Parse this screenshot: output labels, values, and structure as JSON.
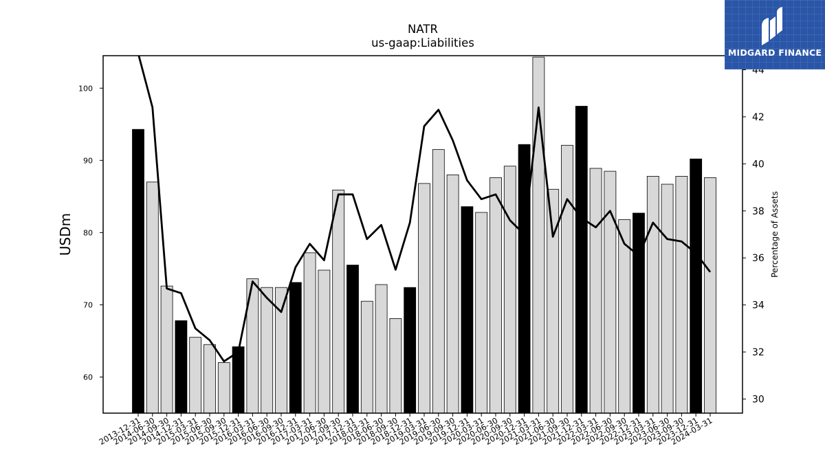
{
  "brand": {
    "name": "MIDGARD FINANCE",
    "mark": "midgard-logo-icon",
    "bg_color": "#2a56a8"
  },
  "chart_data": {
    "type": "bar",
    "title": "NATR",
    "subtitle": "us-gaap:Liabilities",
    "ylabel": "USDm",
    "y2label": "Percentage of Assets",
    "ylim": [
      55.0,
      104.5
    ],
    "y2lim": [
      29.4,
      44.6
    ],
    "yticks": [
      60,
      70,
      80,
      90,
      100
    ],
    "y2ticks": [
      30,
      32,
      34,
      36,
      38,
      40,
      42,
      44
    ],
    "grid": false,
    "legend": "none",
    "colors": {
      "annual": "#000000",
      "quarterly": "#d8d8d8",
      "line": "#000000"
    },
    "categories": [
      "2013-12-31",
      "2014-06-30",
      "2014-09-30",
      "2014-12-31",
      "2015-03-31",
      "2015-06-30",
      "2015-09-30",
      "2015-12-31",
      "2016-03-31",
      "2016-06-30",
      "2016-09-30",
      "2016-12-31",
      "2017-03-31",
      "2017-06-30",
      "2017-09-30",
      "2017-12-31",
      "2018-03-31",
      "2018-06-30",
      "2018-09-30",
      "2018-12-31",
      "2019-03-31",
      "2019-06-30",
      "2019-09-30",
      "2019-12-31",
      "2020-03-31",
      "2020-06-30",
      "2020-09-30",
      "2020-12-31",
      "2021-03-31",
      "2021-06-30",
      "2021-09-30",
      "2021-12-31",
      "2022-03-31",
      "2022-06-30",
      "2022-09-30",
      "2022-12-31",
      "2023-03-31",
      "2023-06-30",
      "2023-09-30",
      "2023-12-31",
      "2024-03-31"
    ],
    "series": [
      {
        "kind": "bar",
        "values": [
          94.3,
          87.0,
          72.6,
          67.8,
          65.5,
          64.5,
          62.0,
          64.2,
          73.6,
          72.4,
          72.4,
          73.1,
          77.2,
          74.8,
          85.9,
          75.5,
          70.5,
          72.8,
          68.1,
          72.4,
          86.8,
          91.5,
          88.0,
          83.6,
          82.8,
          87.6,
          89.2,
          92.2,
          104.3,
          86.0,
          92.1,
          97.5,
          88.9,
          88.5,
          81.8,
          82.7,
          87.8,
          86.7,
          87.8,
          90.2,
          87.6
        ],
        "annual": [
          true,
          false,
          false,
          true,
          false,
          false,
          false,
          true,
          false,
          false,
          false,
          true,
          false,
          false,
          false,
          true,
          false,
          false,
          false,
          true,
          false,
          false,
          false,
          true,
          false,
          false,
          false,
          true,
          false,
          false,
          false,
          true,
          false,
          false,
          false,
          true,
          false,
          false,
          false,
          true,
          false
        ]
      },
      {
        "kind": "line",
        "axis": "right",
        "values": [
          44.7,
          42.4,
          34.7,
          34.5,
          33.0,
          32.5,
          31.6,
          32.0,
          35.0,
          34.3,
          33.7,
          35.6,
          36.6,
          35.9,
          38.7,
          38.7,
          36.8,
          37.4,
          35.5,
          37.5,
          41.6,
          42.3,
          41.0,
          39.3,
          38.5,
          38.7,
          37.6,
          37.0,
          42.4,
          36.9,
          38.5,
          37.7,
          37.3,
          38.0,
          36.6,
          36.1,
          37.5,
          36.8,
          36.7,
          36.2,
          35.4
        ]
      }
    ]
  }
}
